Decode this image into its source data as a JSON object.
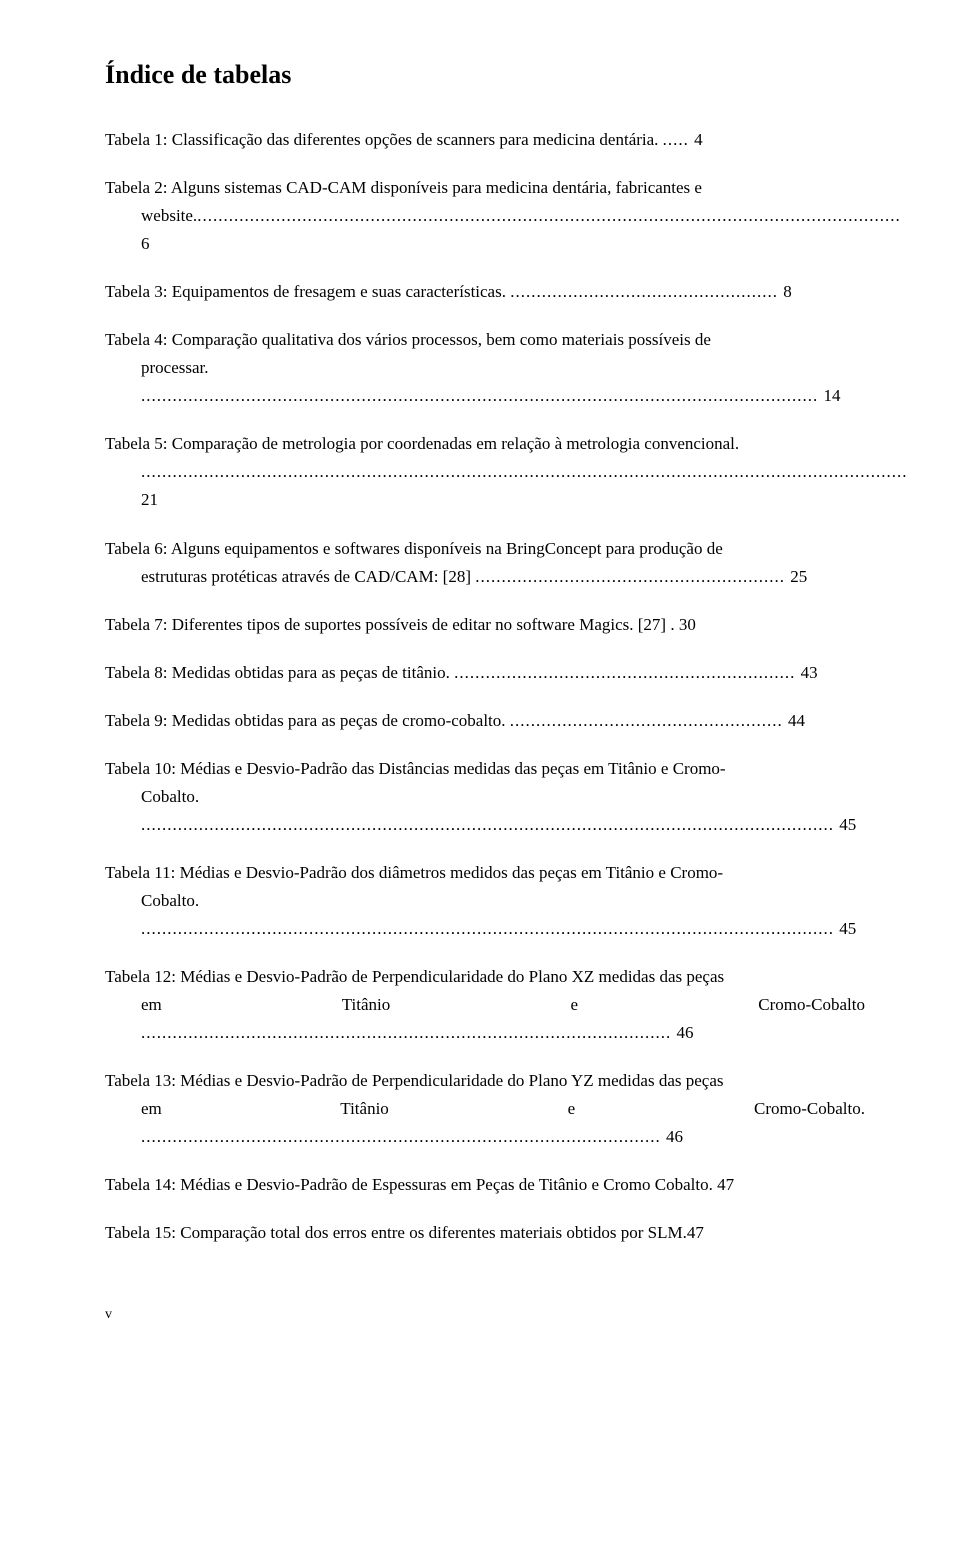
{
  "heading": "Índice de tabelas",
  "entries": [
    {
      "line1": "Tabela 1: Classificação das diferentes opções de scanners para medicina dentária. ",
      "dots1": "..... ",
      "page1": "4",
      "line2": null
    },
    {
      "line1": "Tabela 2: Alguns sistemas CAD-CAM disponíveis para medicina dentária, fabricantes e",
      "line2_text": "website.",
      "line2_dots": "...................................................................................................................................... ",
      "line2_page": "6"
    },
    {
      "line1": "Tabela 3: Equipamentos de fresagem e suas características. ",
      "dots1": "................................................... ",
      "page1": "8",
      "line2": null
    },
    {
      "line1": "Tabela 4: Comparação qualitativa dos vários processos, bem como materiais possíveis de",
      "line2_text": "processar. ",
      "line2_dots": "................................................................................................................................. ",
      "line2_page": "14"
    },
    {
      "line1": "Tabela 5: Comparação de metrologia por coordenadas em relação à metrologia convencional.",
      "line2_text": "",
      "line2_dots": " .................................................................................................................................................. ",
      "line2_page": "21"
    },
    {
      "line1": "Tabela 6: Alguns equipamentos e softwares disponíveis na BringConcept para produção de",
      "line2_text": "estruturas protéticas através de CAD/CAM: [28] ",
      "line2_dots": "........................................................... ",
      "line2_page": "25"
    },
    {
      "line1": "Tabela 7: Diferentes tipos de suportes possíveis de editar no software Magics. [27] . ",
      "dots1": "",
      "page1": "30",
      "line2": null
    },
    {
      "line1": "Tabela 8: Medidas obtidas para as peças de titânio. ",
      "dots1": "................................................................. ",
      "page1": "43",
      "line2": null
    },
    {
      "line1": "Tabela 9: Medidas obtidas para as peças de cromo-cobalto. ",
      "dots1": ".................................................... ",
      "page1": "44",
      "line2": null
    },
    {
      "line1": "Tabela 10: Médias e Desvio-Padrão das Distâncias medidas das peças em Titânio e Cromo-",
      "line2_text": "Cobalto. ",
      "line2_dots": ".................................................................................................................................... ",
      "line2_page": "45"
    },
    {
      "line1": "Tabela 11: Médias e Desvio-Padrão dos diâmetros medidos das peças em Titânio e Cromo-",
      "line2_text": "Cobalto. ",
      "line2_dots": ".................................................................................................................................... ",
      "line2_page": "45"
    },
    {
      "line1": "Tabela 12: Médias e Desvio-Padrão de Perpendicularidade do Plano XZ medidas das peças",
      "line2_text": "em Titânio e Cromo-Cobalto ",
      "line2_dots": "..................................................................................................... ",
      "line2_page": "46"
    },
    {
      "line1": "Tabela 13: Médias e Desvio-Padrão de Perpendicularidade do Plano YZ medidas das peças",
      "line2_text": "em Titânio e Cromo-Cobalto. ",
      "line2_dots": "................................................................................................... ",
      "line2_page": "46"
    },
    {
      "line1": "Tabela 14: Médias e Desvio-Padrão de Espessuras em Peças de Titânio e Cromo Cobalto. ",
      "dots1": "",
      "page1": "47",
      "line2": null
    },
    {
      "line1": "Tabela 15: Comparação total dos erros entre os diferentes materiais obtidos por SLM.",
      "dots1": "",
      "page1": "47",
      "line2": null
    }
  ],
  "footer_marker": "v"
}
